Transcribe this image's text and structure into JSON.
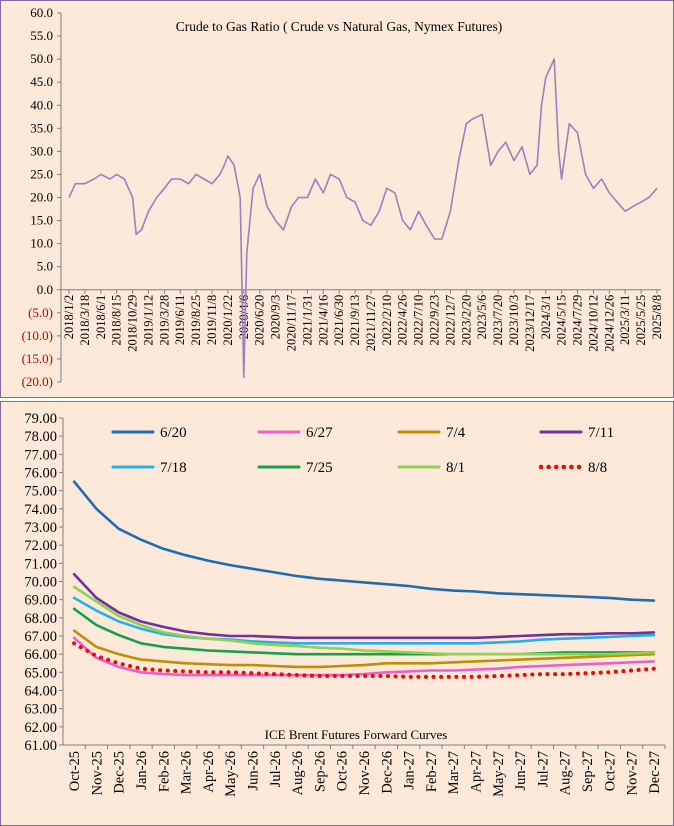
{
  "chart_data": [
    {
      "type": "line",
      "title": "Crude to Gas Ratio ( Crude vs Natural Gas, Nymex Futures)",
      "xlabel": "",
      "ylabel": "",
      "ylim": [
        -20,
        60
      ],
      "ytick_step": 5,
      "grid": false,
      "negative_label_color": "#c00000",
      "series_color": "#9b7fc0",
      "x_tick_labels": [
        "2018/1/2",
        "2018/3/18",
        "2018/6/1",
        "2018/8/15",
        "2018/10/29",
        "2019/1/12",
        "2019/3/28",
        "2019/6/11",
        "2019/8/25",
        "2019/11/8",
        "2020/1/22",
        "2020/4/6",
        "2020/6/20",
        "2020/9/3",
        "2020/11/17",
        "2021/1/31",
        "2021/4/16",
        "2021/6/30",
        "2021/9/13",
        "2021/11/27",
        "2022/2/10",
        "2022/4/26",
        "2022/7/10",
        "2022/9/23",
        "2022/12/7",
        "2023/2/20",
        "2023/5/6",
        "2023/7/20",
        "2023/10/3",
        "2023/12/17",
        "2024/3/1",
        "2024/5/15",
        "2024/7/29",
        "2024/10/12",
        "2024/12/26",
        "2025/3/11",
        "2025/5/25",
        "2025/8/8"
      ],
      "series": [
        {
          "x": [
            "2018/1/2",
            "2018/2/1",
            "2018/3/18",
            "2018/5/1",
            "2018/6/1",
            "2018/7/15",
            "2018/8/15",
            "2018/9/20",
            "2018/10/29",
            "2018/11/15",
            "2018/12/10",
            "2019/1/12",
            "2019/2/20",
            "2019/3/28",
            "2019/5/1",
            "2019/6/11",
            "2019/7/20",
            "2019/8/25",
            "2019/10/1",
            "2019/11/8",
            "2019/12/15",
            "2020/1/5",
            "2020/1/22",
            "2020/2/20",
            "2020/3/20",
            "2020/4/6",
            "2020/4/20",
            "2020/5/20",
            "2020/6/20",
            "2020/7/25",
            "2020/9/3",
            "2020/10/10",
            "2020/11/17",
            "2020/12/20",
            "2021/1/31",
            "2021/3/10",
            "2021/4/16",
            "2021/5/20",
            "2021/6/30",
            "2021/8/5",
            "2021/9/13",
            "2021/10/20",
            "2021/11/27",
            "2022/1/5",
            "2022/2/10",
            "2022/3/20",
            "2022/4/26",
            "2022/6/1",
            "2022/7/10",
            "2022/8/15",
            "2022/9/23",
            "2022/10/28",
            "2022/12/7",
            "2023/1/15",
            "2023/2/20",
            "2023/3/20",
            "2023/5/6",
            "2023/6/15",
            "2023/7/20",
            "2023/8/25",
            "2023/10/3",
            "2023/11/10",
            "2023/12/17",
            "2024/1/20",
            "2024/2/10",
            "2024/3/1",
            "2024/4/10",
            "2024/5/1",
            "2024/5/15",
            "2024/6/20",
            "2024/7/29",
            "2024/9/5",
            "2024/10/12",
            "2024/11/20",
            "2024/12/26",
            "2025/2/1",
            "2025/3/11",
            "2025/4/15",
            "2025/5/25",
            "2025/7/1",
            "2025/8/8"
          ],
          "values": [
            20,
            23,
            23,
            24,
            25,
            24,
            25,
            24,
            20,
            12,
            13,
            17,
            20,
            22,
            24,
            24,
            23,
            25,
            24,
            23,
            25,
            27,
            29,
            27,
            20,
            -19,
            8,
            22,
            25,
            18,
            15,
            13,
            18,
            20,
            20,
            24,
            21,
            25,
            24,
            20,
            19,
            15,
            14,
            17,
            22,
            21,
            15,
            13,
            17,
            14,
            11,
            11,
            17,
            28,
            36,
            37,
            38,
            27,
            30,
            32,
            28,
            31,
            25,
            27,
            40,
            46,
            50,
            30,
            24,
            36,
            34,
            25,
            22,
            24,
            21,
            19,
            17,
            18,
            19,
            20,
            22
          ]
        }
      ]
    },
    {
      "type": "line",
      "title": "ICE Brent Futures Forward Curves",
      "xlabel": "",
      "ylabel": "",
      "ylim": [
        61,
        79
      ],
      "ytick_step": 1,
      "grid": false,
      "legend": "top",
      "categories": [
        "Oct-25",
        "Nov-25",
        "Dec-25",
        "Jan-26",
        "Feb-26",
        "Mar-26",
        "Apr-26",
        "May-26",
        "Jun-26",
        "Jul-26",
        "Aug-26",
        "Sep-26",
        "Oct-26",
        "Nov-26",
        "Dec-26",
        "Jan-27",
        "Feb-27",
        "Mar-27",
        "Apr-27",
        "May-27",
        "Jun-27",
        "Jul-27",
        "Aug-27",
        "Sep-27",
        "Oct-27",
        "Nov-27",
        "Dec-27"
      ],
      "series": [
        {
          "name": "6/20",
          "color": "#1f6cb2",
          "dash": false,
          "values": [
            75.5,
            74.0,
            72.9,
            72.3,
            71.8,
            71.45,
            71.15,
            70.9,
            70.7,
            70.5,
            70.3,
            70.15,
            70.05,
            69.95,
            69.85,
            69.75,
            69.6,
            69.5,
            69.45,
            69.35,
            69.3,
            69.25,
            69.2,
            69.15,
            69.1,
            69.0,
            68.95
          ]
        },
        {
          "name": "6/27",
          "color": "#ec5fc9",
          "dash": false,
          "values": [
            66.9,
            65.8,
            65.3,
            65.0,
            64.9,
            64.85,
            64.85,
            64.85,
            64.85,
            64.85,
            64.85,
            64.85,
            64.85,
            64.9,
            65.0,
            65.05,
            65.1,
            65.1,
            65.15,
            65.2,
            65.3,
            65.35,
            65.4,
            65.45,
            65.5,
            65.55,
            65.6
          ]
        },
        {
          "name": "7/4",
          "color": "#bf8f00",
          "dash": false,
          "values": [
            67.3,
            66.4,
            66.0,
            65.7,
            65.6,
            65.5,
            65.45,
            65.4,
            65.4,
            65.35,
            65.3,
            65.3,
            65.35,
            65.4,
            65.5,
            65.5,
            65.5,
            65.55,
            65.6,
            65.65,
            65.7,
            65.75,
            65.8,
            65.85,
            65.9,
            65.95,
            66.0
          ]
        },
        {
          "name": "7/11",
          "color": "#7030a0",
          "dash": false,
          "values": [
            70.4,
            69.1,
            68.3,
            67.8,
            67.5,
            67.25,
            67.1,
            67.0,
            67.0,
            66.95,
            66.9,
            66.9,
            66.9,
            66.9,
            66.9,
            66.9,
            66.9,
            66.9,
            66.9,
            66.95,
            67.0,
            67.05,
            67.1,
            67.1,
            67.15,
            67.15,
            67.2
          ]
        },
        {
          "name": "7/18",
          "color": "#25b0e8",
          "dash": false,
          "values": [
            69.1,
            68.4,
            67.8,
            67.4,
            67.1,
            66.95,
            66.85,
            66.8,
            66.7,
            66.65,
            66.6,
            66.6,
            66.6,
            66.6,
            66.6,
            66.6,
            66.6,
            66.6,
            66.6,
            66.65,
            66.7,
            66.8,
            66.85,
            66.9,
            66.95,
            67.0,
            67.05
          ]
        },
        {
          "name": "7/25",
          "color": "#17a04a",
          "dash": false,
          "values": [
            68.5,
            67.6,
            67.05,
            66.6,
            66.4,
            66.3,
            66.2,
            66.15,
            66.1,
            66.05,
            66.0,
            66.0,
            66.0,
            66.0,
            66.0,
            66.0,
            66.0,
            66.0,
            66.0,
            66.0,
            66.0,
            66.05,
            66.1,
            66.1,
            66.1,
            66.1,
            66.1
          ]
        },
        {
          "name": "8/1",
          "color": "#92d050",
          "dash": false,
          "values": [
            69.7,
            68.9,
            68.1,
            67.6,
            67.2,
            67.0,
            66.85,
            66.75,
            66.6,
            66.5,
            66.45,
            66.35,
            66.3,
            66.2,
            66.15,
            66.1,
            66.05,
            66.0,
            66.0,
            66.0,
            66.0,
            66.0,
            66.0,
            66.0,
            66.0,
            66.05,
            66.1
          ]
        },
        {
          "name": "8/8",
          "color": "#ff0000",
          "dash": true,
          "values": [
            66.6,
            65.9,
            65.5,
            65.2,
            65.1,
            65.05,
            65.0,
            65.0,
            64.95,
            64.9,
            64.85,
            64.8,
            64.8,
            64.8,
            64.8,
            64.75,
            64.75,
            64.75,
            64.75,
            64.8,
            64.85,
            64.9,
            64.9,
            64.95,
            65.0,
            65.1,
            65.2
          ]
        }
      ]
    }
  ]
}
